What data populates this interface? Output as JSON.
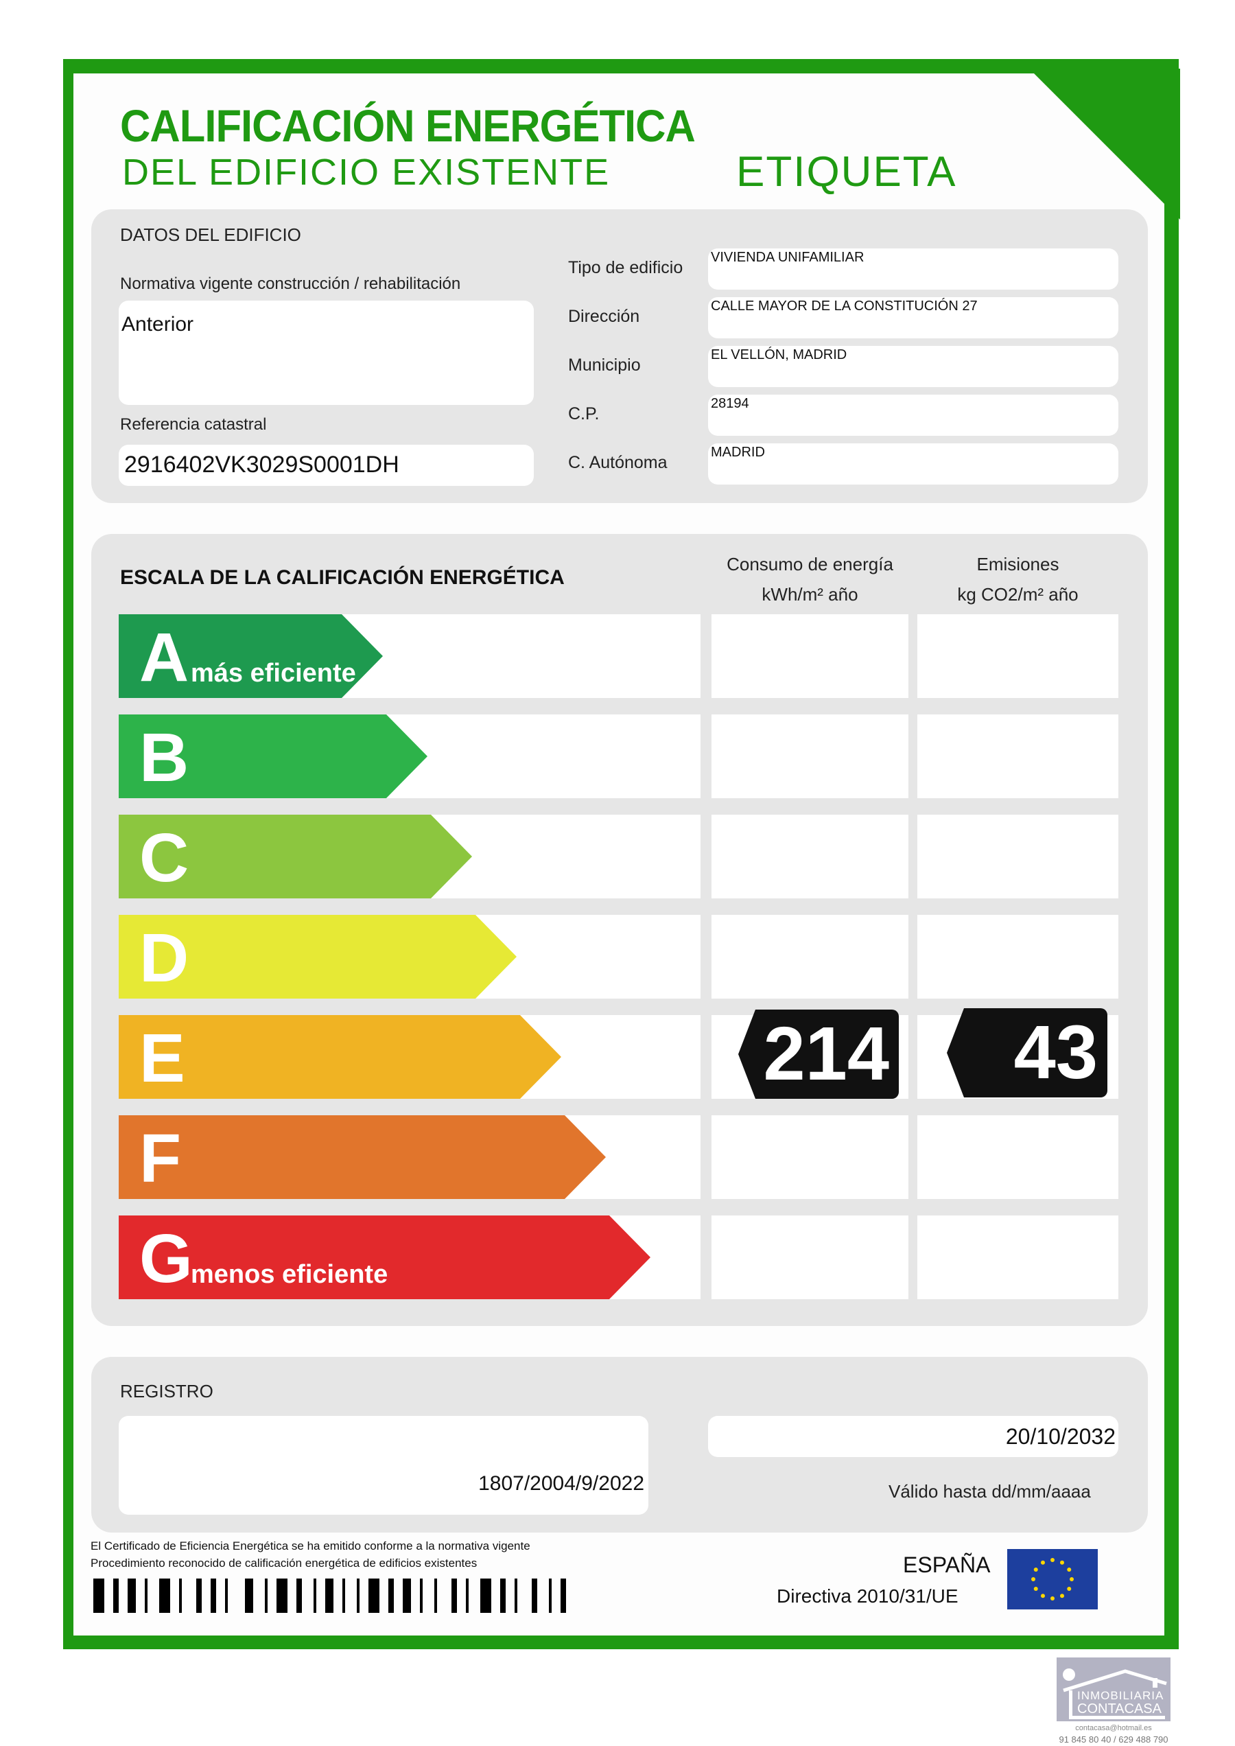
{
  "header": {
    "title_line1": "CALIFICACIÓN ENERGÉTICA",
    "title_line2": "DEL EDIFICIO EXISTENTE",
    "label": "ETIQUETA"
  },
  "building": {
    "section_title": "DATOS DEL EDIFICIO",
    "regulation_label": "Normativa vigente construcción / rehabilitación",
    "regulation_value": "Anterior",
    "cadastral_label": "Referencia catastral",
    "cadastral_value": "2916402VK3029S0001DH",
    "fields": [
      {
        "label": "Tipo de edificio",
        "value": "VIVIENDA UNIFAMILIAR"
      },
      {
        "label": "Dirección",
        "value": "CALLE MAYOR DE LA CONSTITUCIÓN 27"
      },
      {
        "label": "Municipio",
        "value": "EL VELLÓN, MADRID"
      },
      {
        "label": "C.P.",
        "value": "28194"
      },
      {
        "label": "C. Autónoma",
        "value": "MADRID"
      }
    ]
  },
  "scale": {
    "section_title": "ESCALA DE LA CALIFICACIÓN ENERGÉTICA",
    "col1": "Consumo de energía",
    "col1_unit": "kWh/m² año",
    "col2": "Emisiones",
    "col2_unit": "kg CO2/m² año",
    "ratings": [
      {
        "letter": "A",
        "note": "más eficiente",
        "color": "#1e9a4f"
      },
      {
        "letter": "B",
        "note": "",
        "color": "#2db34a"
      },
      {
        "letter": "C",
        "note": "",
        "color": "#8cc63f"
      },
      {
        "letter": "D",
        "note": "",
        "color": "#e6e935"
      },
      {
        "letter": "E",
        "note": "",
        "color": "#f0b323"
      },
      {
        "letter": "F",
        "note": "",
        "color": "#e1752c"
      },
      {
        "letter": "G",
        "note": "menos eficiente",
        "color": "#e2292c"
      }
    ],
    "current_rating": "E",
    "energy_consumption": "214",
    "emissions": "43"
  },
  "registry": {
    "section_title": "REGISTRO",
    "number": "1807/2004/9/2022",
    "valid_until": "20/10/2032",
    "valid_label": "Válido hasta dd/mm/aaaa"
  },
  "footer": {
    "legal_line1": "El Certificado de Eficiencia Energética se ha emitido conforme a la normativa vigente",
    "legal_line2": "Procedimiento reconocido de calificación energética de edificios existentes",
    "country": "ESPAÑA",
    "directive": "Directiva 2010/31/UE"
  },
  "agency": {
    "line1": "INMOBILIARIA",
    "line2": "CONTACASA",
    "email": "contacasa@hotmail.es",
    "phone": "91 845 80 40 / 629 488 790"
  }
}
